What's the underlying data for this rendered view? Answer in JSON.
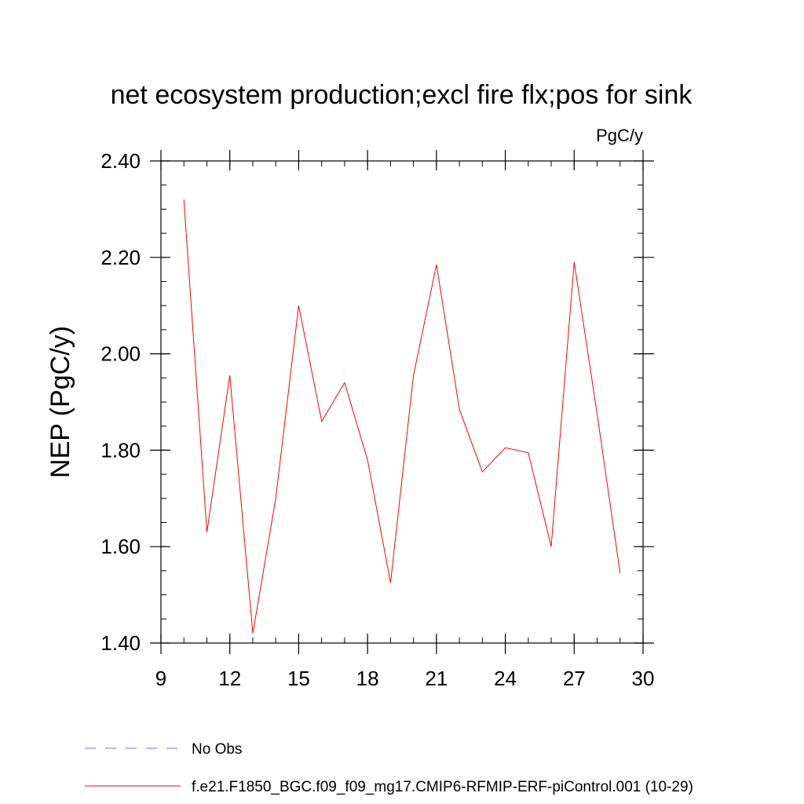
{
  "chart_data": {
    "type": "line",
    "title": "net ecosystem production;excl fire flx;pos for sink",
    "units_label": "PgC/y",
    "xlabel": "",
    "ylabel": "NEP  (PgC/y)",
    "xlim": [
      9,
      30
    ],
    "ylim": [
      1.4,
      2.4
    ],
    "x_ticks": [
      "9",
      "12",
      "15",
      "18",
      "21",
      "24",
      "27",
      "30"
    ],
    "y_ticks": [
      "1.40",
      "1.60",
      "1.80",
      "2.00",
      "2.20",
      "2.40"
    ],
    "grid": false,
    "legend_position": "bottom",
    "series": [
      {
        "name": "f.e21.F1850_BGC.f09_f09_mg17.CMIP6-RFMIP-ERF-piControl.001 (10-29)",
        "color": "#ff0000",
        "style": "solid",
        "x": [
          10,
          11,
          12,
          13,
          14,
          15,
          16,
          17,
          18,
          19,
          20,
          21,
          22,
          23,
          24,
          25,
          26,
          27,
          28,
          29
        ],
        "values": [
          2.32,
          1.63,
          1.955,
          1.42,
          1.7,
          2.1,
          1.86,
          1.94,
          1.78,
          1.525,
          1.955,
          2.185,
          1.885,
          1.755,
          1.805,
          1.795,
          1.6,
          2.19,
          1.875,
          1.545
        ]
      }
    ],
    "legend": [
      {
        "label": "No Obs",
        "color": "#7b68ee",
        "style": "dashed"
      },
      {
        "label": "f.e21.F1850_BGC.f09_f09_mg17.CMIP6-RFMIP-ERF-piControl.001 (10-29)",
        "color": "#ff0000",
        "style": "solid"
      }
    ]
  }
}
